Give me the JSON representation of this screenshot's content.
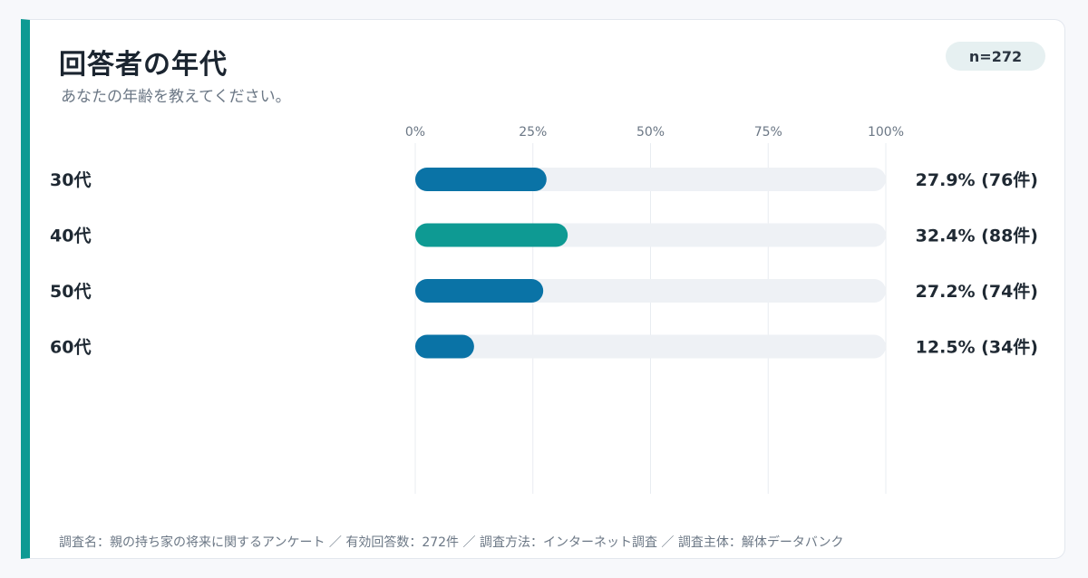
{
  "header": {
    "title": "回答者の年代",
    "subtitle": "あなたの年齢を教えてください。",
    "sample_badge": "n=272"
  },
  "chart_data": {
    "type": "bar",
    "orientation": "horizontal",
    "categories": [
      "30代",
      "40代",
      "50代",
      "60代"
    ],
    "values": [
      27.9,
      32.4,
      27.2,
      12.5
    ],
    "counts": [
      76,
      88,
      74,
      34
    ],
    "value_labels": [
      "27.9% (76件)",
      "32.4% (88件)",
      "27.2% (74件)",
      "12.5% (34件)"
    ],
    "x_ticks": [
      "0%",
      "25%",
      "50%",
      "75%",
      "100%"
    ],
    "xlim": [
      0,
      100
    ],
    "grid": true,
    "colors": {
      "default": "#0a73a6",
      "highlight": "#0e9a93",
      "track": "#eef1f5",
      "grid": "#e8ecf1",
      "tick_text": "#6b7785",
      "label_text": "#1f2933"
    },
    "highlight_index": 1
  },
  "footer": {
    "note": "調査名：親の持ち家の将来に関するアンケート ／ 有効回答数：272件 ／ 調査方法：インターネット調査 ／ 調査主体：解体データバンク"
  }
}
